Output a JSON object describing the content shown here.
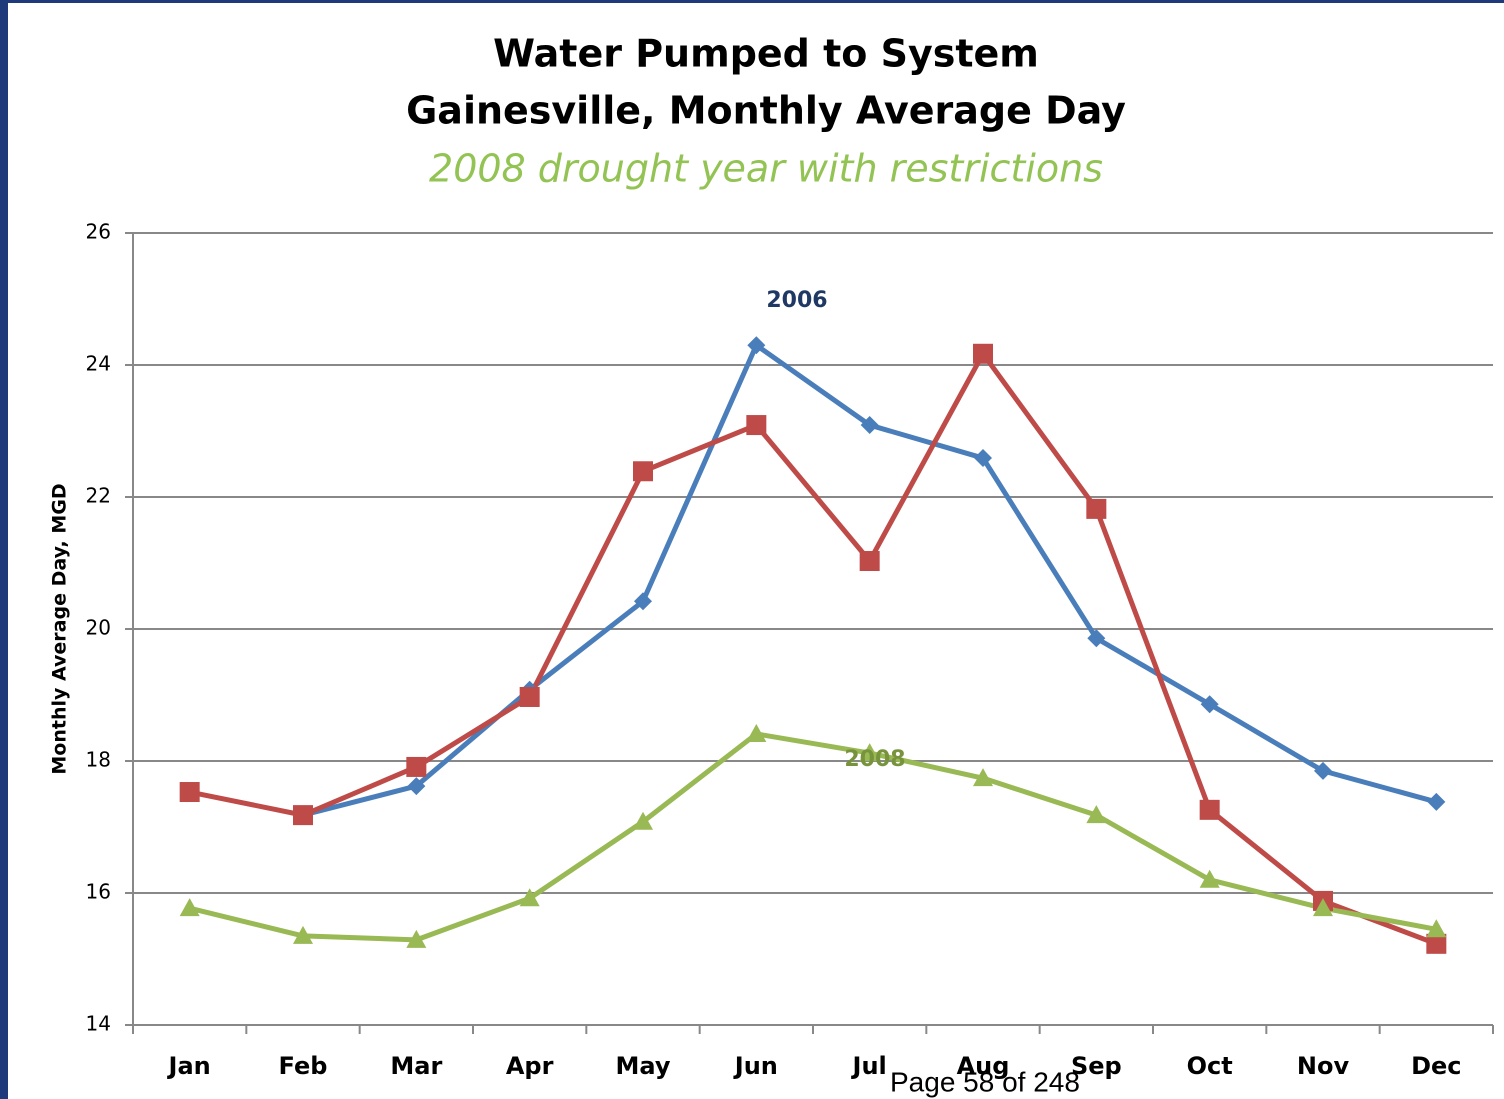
{
  "chart_data": {
    "type": "line",
    "title": "Water Pumped to System",
    "title_line2": "Gainesville, Monthly Average Day",
    "subtitle": "2008 drought year with restrictions",
    "y_label": "Monthly Average Day, MGD",
    "categories": [
      "Jan",
      "Feb",
      "Mar",
      "Apr",
      "May",
      "Jun",
      "Jul",
      "Aug",
      "Sep",
      "Oct",
      "Nov",
      "Dec"
    ],
    "series": [
      {
        "name": "2006",
        "color": "#4a7ebb",
        "marker": "diamond",
        "values": [
          null,
          17.18,
          17.62,
          19.08,
          20.42,
          24.3,
          23.09,
          22.59,
          19.86,
          18.86,
          17.85,
          17.38
        ]
      },
      {
        "color": "#be4b48",
        "marker": "square",
        "values": [
          17.53,
          17.18,
          17.91,
          18.97,
          22.39,
          23.09,
          21.03,
          24.17,
          21.82,
          17.26,
          15.88,
          15.23
        ]
      },
      {
        "name": "2008",
        "color": "#98b954",
        "marker": "triangle",
        "values": [
          15.77,
          15.35,
          15.29,
          15.92,
          17.08,
          18.41,
          18.12,
          17.74,
          17.18,
          16.2,
          15.77,
          15.45
        ]
      }
    ],
    "ylim": [
      14,
      26
    ],
    "yticks": [
      14,
      16,
      18,
      20,
      22,
      24,
      26
    ],
    "grid": true
  },
  "footer": "Page 58 of 248"
}
